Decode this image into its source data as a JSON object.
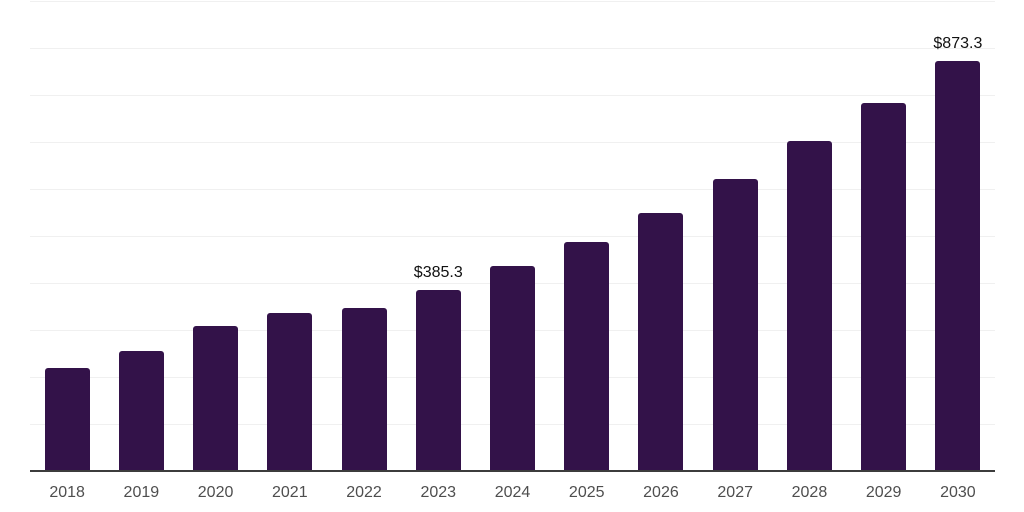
{
  "chart_data": {
    "type": "bar",
    "title": "",
    "xlabel": "",
    "ylabel": "",
    "categories": [
      "2018",
      "2019",
      "2020",
      "2021",
      "2022",
      "2023",
      "2024",
      "2025",
      "2026",
      "2027",
      "2028",
      "2029",
      "2030"
    ],
    "values": [
      218.5,
      256.0,
      308.5,
      335.5,
      347.5,
      385.3,
      436.0,
      486.5,
      548.0,
      620.5,
      702.5,
      783.5,
      873.3
    ],
    "point_labels": {
      "2023": "$385.3",
      "2030": "$873.3"
    },
    "ylim": [
      0,
      1000
    ],
    "grid_step": 100,
    "grid": "horizontal, light gray, no y-axis tick labels",
    "legend": "none",
    "colors": {
      "bar": "#331249",
      "gridline": "#f0f0f0",
      "axis": "#3c3c3c",
      "tick_label": "#4e4e4e",
      "value_label": "#111111",
      "background": "#ffffff"
    }
  }
}
